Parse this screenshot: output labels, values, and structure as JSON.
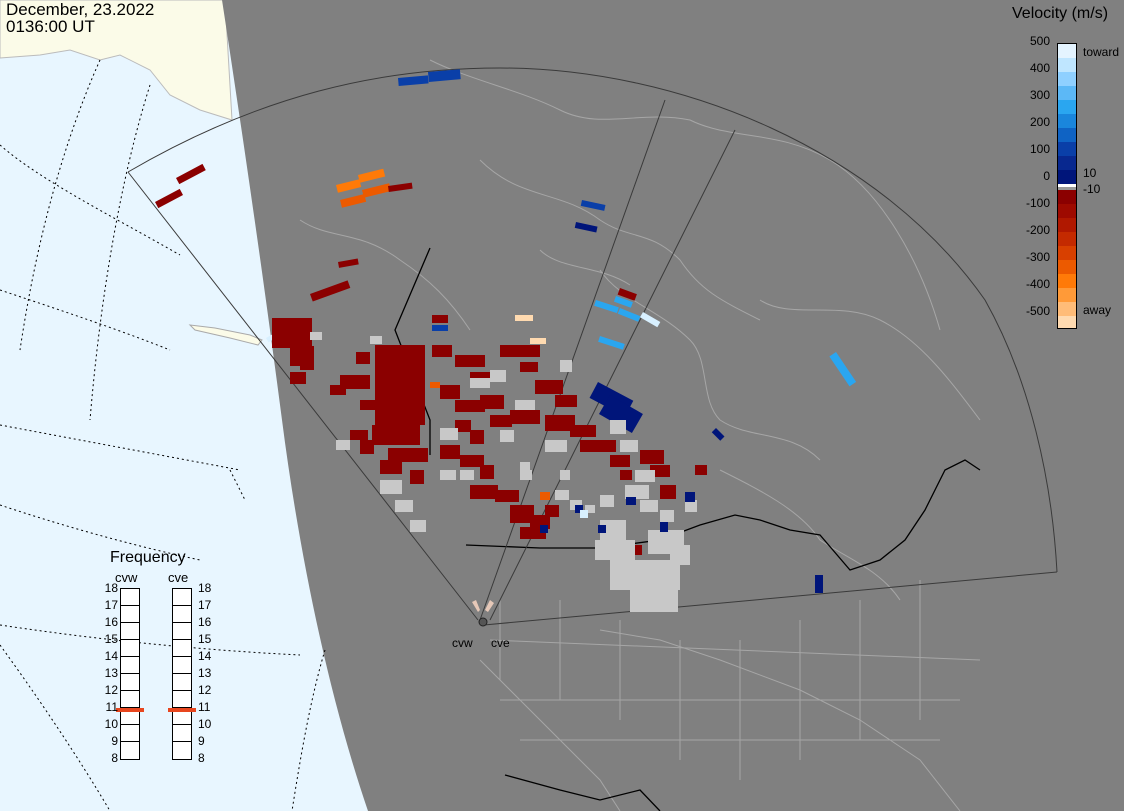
{
  "header": {
    "date": "December, 23.2022",
    "time": "0136:00 UT"
  },
  "velocity_scale": {
    "title": "Velocity (m/s)",
    "ticks": [
      "500",
      "400",
      "300",
      "200",
      "100",
      "0",
      "-100",
      "-200",
      "-300",
      "-400",
      "-500"
    ],
    "label_toward": "toward",
    "label_away": "away",
    "label_pos_threshold": "10",
    "label_neg_threshold": "-10",
    "colors": {
      "toward_light": "#d8f0ff",
      "toward_mid": "#2aa6f0",
      "toward_dark": "#0a3fa8",
      "toward_darkest": "#00157a",
      "away_dark": "#8b0000",
      "away_mid": "#d84000",
      "away_orange": "#ff8c10",
      "away_light": "#ffdab0",
      "ground_scatter": "#c8c8c8"
    }
  },
  "frequency_panel": {
    "title": "Frequency",
    "radars": [
      "cvw",
      "cve"
    ],
    "scale": [
      "18",
      "17",
      "16",
      "15",
      "14",
      "13",
      "12",
      "11",
      "10",
      "9",
      "8"
    ],
    "selected_mhz": [
      10.8,
      10.8
    ]
  },
  "map": {
    "site_labels": [
      "cvw",
      "cve"
    ],
    "colors": {
      "background_night": "#808080",
      "ocean_day": "#e8f6ff",
      "land_day": "#fbfbe8",
      "borders": "#000000",
      "coast": "#9a9a9a"
    }
  }
}
